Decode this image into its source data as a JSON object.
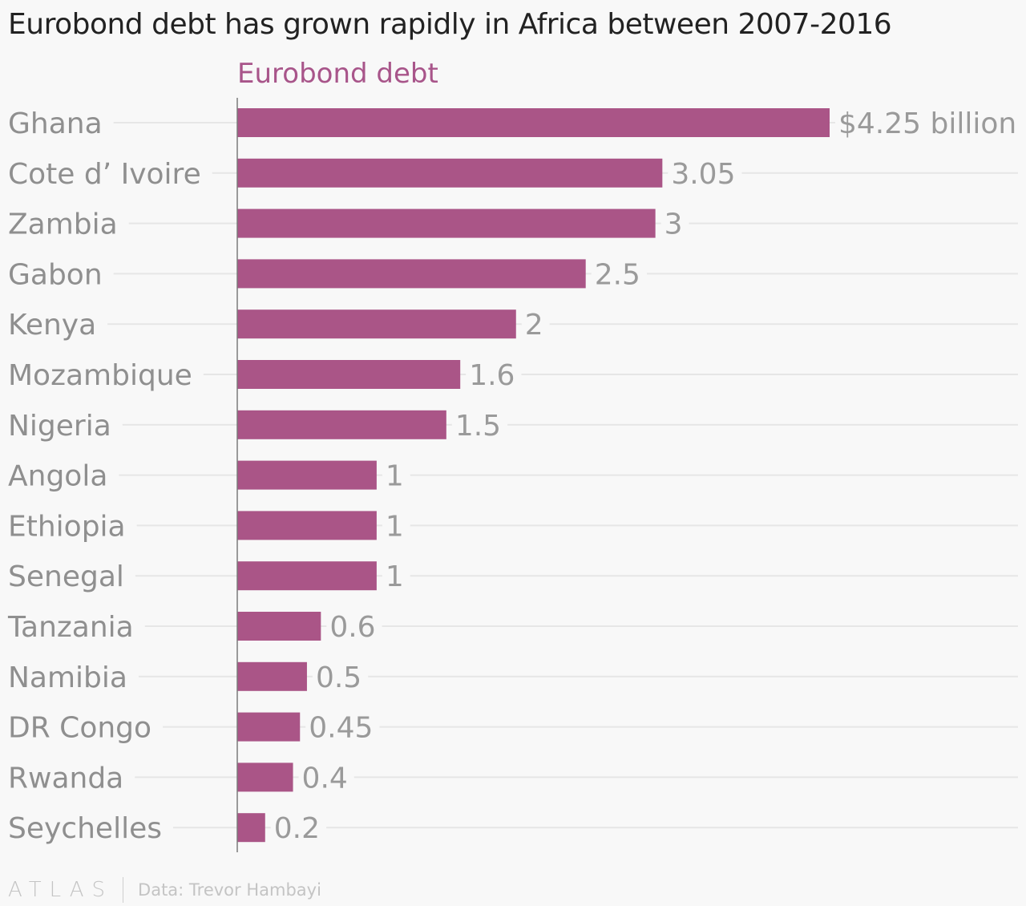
{
  "title": "Eurobond debt has grown rapidly in Africa between 2007-2016",
  "footer": {
    "logo": "ATLAS",
    "source": "Data: Trevor Hambayi"
  },
  "colors": {
    "bar": "#aa5587",
    "series_label": "#a8558a",
    "category_label": "#8f8f8f",
    "value_label": "#9a9a9a",
    "gridline": "#e6e6e6",
    "axis": "#7a7a7a"
  },
  "chart_data": {
    "type": "bar",
    "orientation": "horizontal",
    "series_label": "Eurobond debt",
    "categories": [
      "Ghana",
      "Cote d’ Ivoire",
      "Zambia",
      "Gabon",
      "Kenya",
      "Mozambique",
      "Nigeria",
      "Angola",
      "Ethiopia",
      "Senegal",
      "Tanzania",
      "Namibia",
      "DR Congo",
      "Rwanda",
      "Seychelles"
    ],
    "values": [
      4.25,
      3.05,
      3,
      2.5,
      2,
      1.6,
      1.5,
      1,
      1,
      1,
      0.6,
      0.5,
      0.45,
      0.4,
      0.2
    ],
    "value_labels": [
      "$4.25 billion",
      "3.05",
      "3",
      "2.5",
      "2",
      "1.6",
      "1.5",
      "1",
      "1",
      "1",
      "0.6",
      "0.5",
      "0.45",
      "0.4",
      "0.2"
    ],
    "xlim": [
      0,
      4.25
    ],
    "grid": true
  }
}
